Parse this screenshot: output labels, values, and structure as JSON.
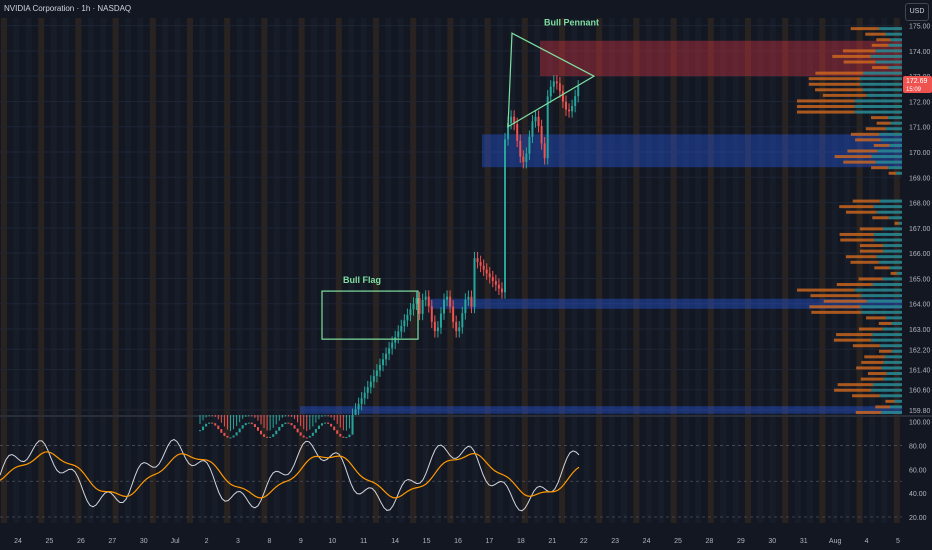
{
  "header": {
    "title": "NVIDIA Corporation · 1h · NASDAQ",
    "currency_button": "USD"
  },
  "price_badges": {
    "last": "172.69",
    "sub": "15:09"
  },
  "annotations": {
    "bull_pennant": "Bull Pennant",
    "bull_flag": "Bull Flag"
  },
  "colors": {
    "background": "#131722",
    "bull": "#26a69a",
    "bear": "#ef5350",
    "annotation": "#7ee0a0",
    "zone_blue": "#2962ff",
    "zone_red": "#f23645",
    "vp_orange": "#d2691e",
    "vp_teal": "#2a8c95",
    "rsi_line": "#d1d4dc",
    "rsi_ma": "#ff9800"
  },
  "chart_data": [
    {
      "type": "line",
      "x": [
        "24",
        "25",
        "26",
        "27",
        "30",
        "Jul",
        "2",
        "3",
        "8",
        "9",
        "10",
        "11",
        "14",
        "15",
        "16",
        "17",
        "18",
        "21",
        "22",
        "23",
        "24",
        "25",
        "28",
        "29",
        "30",
        "31",
        "Aug",
        "4",
        "5"
      ],
      "close": [
        159.2,
        159.0,
        159.4,
        159.3,
        158.9,
        157.9,
        159.3,
        159.5,
        159.9,
        162.2,
        163.8,
        164.2,
        166.8,
        164.0,
        171.2,
        170.3,
        172.8,
        172.7,
        null,
        null,
        null,
        null,
        null,
        null,
        null,
        null,
        null,
        null,
        null
      ],
      "y_ticks": [
        159.8,
        160.6,
        161.4,
        162.2,
        163.0,
        164.0,
        165.0,
        166.0,
        167.0,
        168.0,
        169.0,
        170.0,
        171.0,
        172.0,
        173.0,
        174.0,
        175.0
      ],
      "ylim": [
        159.6,
        175.3
      ],
      "zones": [
        {
          "kind": "supply",
          "from": 173.0,
          "to": 174.4
        },
        {
          "kind": "demand",
          "from": 169.4,
          "to": 170.7
        },
        {
          "kind": "demand",
          "from": 163.8,
          "to": 164.2
        },
        {
          "kind": "demand",
          "from": 159.65,
          "to": 159.95
        }
      ],
      "last_price": 172.69
    },
    {
      "type": "line",
      "name": "RSI",
      "y_ticks": [
        20.0,
        40.0,
        60.0,
        80.0,
        100.0
      ],
      "ylim": [
        15,
        103
      ],
      "levels": [
        80,
        50,
        20
      ]
    }
  ]
}
